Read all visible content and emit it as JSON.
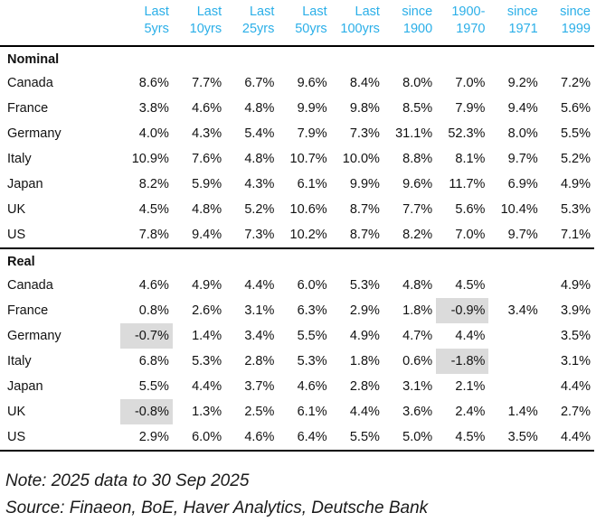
{
  "colors": {
    "accent": "#2bafe8",
    "highlight": "#dbdbdb",
    "text": "#121212",
    "rule": "#000000"
  },
  "chart_data": {
    "type": "table",
    "title": "",
    "columns": [
      "Last\n5yrs",
      "Last\n10yrs",
      "Last\n25yrs",
      "Last\n50yrs",
      "Last\n100yrs",
      "since\n1900",
      "1900-\n1970",
      "since\n1971",
      "since\n1999"
    ],
    "sections": [
      {
        "label": "Nominal",
        "rows": [
          {
            "country": "Canada",
            "values": [
              "8.6%",
              "7.7%",
              "6.7%",
              "9.6%",
              "8.4%",
              "8.0%",
              "7.0%",
              "9.2%",
              "7.2%"
            ]
          },
          {
            "country": "France",
            "values": [
              "3.8%",
              "4.6%",
              "4.8%",
              "9.9%",
              "9.8%",
              "8.5%",
              "7.9%",
              "9.4%",
              "5.6%"
            ]
          },
          {
            "country": "Germany",
            "values": [
              "4.0%",
              "4.3%",
              "5.4%",
              "7.9%",
              "7.3%",
              "31.1%",
              "52.3%",
              "8.0%",
              "5.5%"
            ]
          },
          {
            "country": "Italy",
            "values": [
              "10.9%",
              "7.6%",
              "4.8%",
              "10.7%",
              "10.0%",
              "8.8%",
              "8.1%",
              "9.7%",
              "5.2%"
            ]
          },
          {
            "country": "Japan",
            "values": [
              "8.2%",
              "5.9%",
              "4.3%",
              "6.1%",
              "9.9%",
              "9.6%",
              "11.7%",
              "6.9%",
              "4.9%"
            ]
          },
          {
            "country": "UK",
            "values": [
              "4.5%",
              "4.8%",
              "5.2%",
              "10.6%",
              "8.7%",
              "7.7%",
              "5.6%",
              "10.4%",
              "5.3%"
            ]
          },
          {
            "country": "US",
            "values": [
              "7.8%",
              "9.4%",
              "7.3%",
              "10.2%",
              "8.7%",
              "8.2%",
              "7.0%",
              "9.7%",
              "7.1%"
            ]
          }
        ]
      },
      {
        "label": "Real",
        "rows": [
          {
            "country": "Canada",
            "values": [
              "4.6%",
              "4.9%",
              "4.4%",
              "6.0%",
              "5.3%",
              "4.8%",
              "4.5%",
              "",
              "4.9%"
            ]
          },
          {
            "country": "France",
            "values": [
              "0.8%",
              "2.6%",
              "3.1%",
              "6.3%",
              "2.9%",
              "1.8%",
              "-0.9%",
              "3.4%",
              "3.9%"
            ],
            "highlight": [
              6
            ]
          },
          {
            "country": "Germany",
            "values": [
              "-0.7%",
              "1.4%",
              "3.4%",
              "5.5%",
              "4.9%",
              "4.7%",
              "4.4%",
              "",
              "3.5%"
            ],
            "highlight": [
              0
            ]
          },
          {
            "country": "Italy",
            "values": [
              "6.8%",
              "5.3%",
              "2.8%",
              "5.3%",
              "1.8%",
              "0.6%",
              "-1.8%",
              "",
              "3.1%"
            ],
            "highlight": [
              6
            ]
          },
          {
            "country": "Japan",
            "values": [
              "5.5%",
              "4.4%",
              "3.7%",
              "4.6%",
              "2.8%",
              "3.1%",
              "2.1%",
              "",
              "4.4%"
            ]
          },
          {
            "country": "UK",
            "values": [
              "-0.8%",
              "1.3%",
              "2.5%",
              "6.1%",
              "4.4%",
              "3.6%",
              "2.4%",
              "1.4%",
              "2.7%"
            ],
            "highlight": [
              0
            ]
          },
          {
            "country": "US",
            "values": [
              "2.9%",
              "6.0%",
              "4.6%",
              "6.4%",
              "5.5%",
              "5.0%",
              "4.5%",
              "3.5%",
              "4.4%"
            ]
          }
        ]
      }
    ]
  },
  "footer": {
    "note": "Note: 2025 data to 30 Sep 2025",
    "source": "Source: Finaeon, BoE, Haver Analytics, Deutsche Bank"
  }
}
